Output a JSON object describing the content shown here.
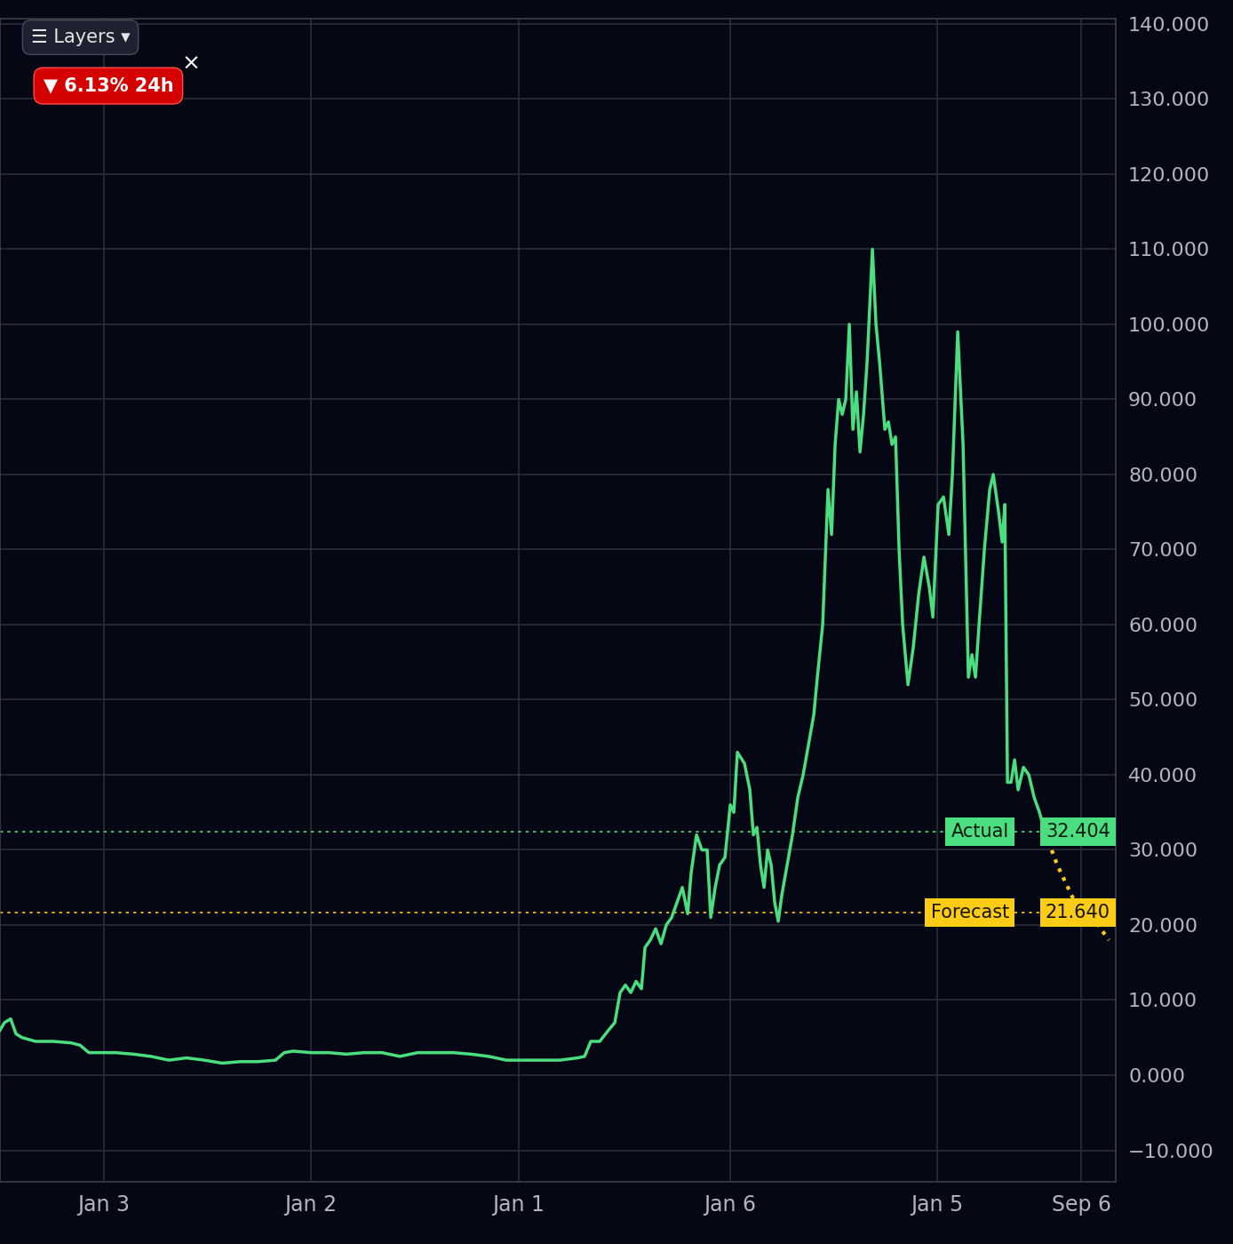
{
  "chart_data": {
    "type": "line",
    "xlim": [
      0,
      1256
    ],
    "xticks": [
      {
        "value": 117,
        "label": "Jan 3"
      },
      {
        "value": 350,
        "label": "Jan 2"
      },
      {
        "value": 584,
        "label": "Jan 1"
      },
      {
        "value": 822,
        "label": "Jan 6"
      },
      {
        "value": 1055,
        "label": "Jan 5"
      },
      {
        "value": 1217,
        "label": "Sep 6"
      }
    ],
    "ylim": [
      -14.2,
      140.7
    ],
    "yticks": [
      {
        "value": -10,
        "label": "−10.000"
      },
      {
        "value": 0,
        "label": "0.000"
      },
      {
        "value": 10,
        "label": "10.000"
      },
      {
        "value": 20,
        "label": "20.000"
      },
      {
        "value": 30,
        "label": "30.000"
      },
      {
        "value": 40,
        "label": "40.000"
      },
      {
        "value": 50,
        "label": "50.000"
      },
      {
        "value": 60,
        "label": "60.000"
      },
      {
        "value": 70,
        "label": "70.000"
      },
      {
        "value": 80,
        "label": "80.000"
      },
      {
        "value": 90,
        "label": "90.000"
      },
      {
        "value": 100,
        "label": "100.000"
      },
      {
        "value": 110,
        "label": "110.000"
      },
      {
        "value": 120,
        "label": "120.000"
      },
      {
        "value": 130,
        "label": "130.000"
      },
      {
        "value": 140,
        "label": "140.000"
      }
    ],
    "grid": true,
    "series": [
      {
        "color": "#4ade80",
        "line_style": "solid",
        "x": [
          0,
          5,
          12,
          18,
          25,
          40,
          60,
          80,
          90,
          95,
          100,
          110,
          130,
          150,
          170,
          190,
          210,
          230,
          250,
          270,
          290,
          310,
          320,
          330,
          350,
          370,
          390,
          410,
          430,
          450,
          470,
          490,
          510,
          530,
          550,
          570,
          590,
          610,
          630,
          650,
          658,
          665,
          675,
          685,
          692,
          698,
          704,
          710,
          716,
          722,
          726,
          732,
          738,
          744,
          750,
          756,
          762,
          768,
          774,
          778,
          784,
          790,
          796,
          800,
          805,
          810,
          816,
          822,
          826,
          830,
          838,
          844,
          848,
          852,
          856,
          860,
          864,
          868,
          872,
          876,
          880,
          886,
          892,
          898,
          904,
          910,
          916,
          920,
          926,
          932,
          936,
          940,
          944,
          948,
          952,
          956,
          960,
          964,
          968,
          972,
          976,
          982,
          986,
          990,
          996,
          1000,
          1004,
          1008,
          1012,
          1016,
          1022,
          1028,
          1034,
          1040,
          1046,
          1050,
          1056,
          1062,
          1068,
          1072,
          1078,
          1084,
          1090,
          1094,
          1098,
          1102,
          1108,
          1114,
          1118,
          1124,
          1128,
          1131,
          1134,
          1138,
          1142,
          1146,
          1152,
          1158,
          1164,
          1170,
          1176
        ],
        "values": [
          6,
          7,
          7.5,
          5.5,
          5,
          4.5,
          4.5,
          4.3,
          4,
          3.5,
          3,
          3,
          3,
          2.8,
          2.5,
          2,
          2.3,
          2,
          1.6,
          1.8,
          1.8,
          2,
          3,
          3.2,
          3,
          3,
          2.8,
          3,
          3,
          2.5,
          3,
          3,
          3,
          2.8,
          2.5,
          2,
          2,
          2,
          2,
          2.3,
          2.5,
          4.5,
          4.5,
          6,
          7,
          11,
          12,
          11,
          12.5,
          11.5,
          17,
          18,
          19.5,
          17.5,
          20,
          21,
          23,
          25,
          21.5,
          27,
          32,
          30,
          30,
          21,
          25,
          28,
          29,
          36,
          35,
          43,
          41.5,
          38,
          32,
          33,
          28,
          25,
          30,
          28,
          23,
          20.5,
          24,
          28,
          32,
          37,
          40,
          44,
          48,
          53,
          60,
          78,
          72,
          84,
          90,
          88,
          90,
          100,
          86,
          91,
          83,
          88,
          95,
          110,
          100,
          95,
          86,
          87,
          84,
          85,
          70,
          60,
          52,
          57,
          64,
          69,
          65,
          61,
          76,
          77,
          72,
          80,
          99,
          84,
          53,
          56,
          53,
          60,
          70,
          78,
          80,
          75,
          71,
          76,
          39,
          39,
          42,
          38,
          41,
          40,
          37,
          35,
          32.4
        ]
      },
      {
        "color": "#facc15",
        "line_style": "dotted",
        "x": [
          1176,
          1190,
          1202,
          1214,
          1236,
          1248
        ],
        "values": [
          32.4,
          28,
          25,
          22,
          20,
          18
        ]
      }
    ],
    "reference_lines": [
      {
        "name": "Actual",
        "value": 32.404,
        "color": "#4ade80"
      },
      {
        "name": "Forecast",
        "value": {
          "value": 21.64,
          "label": "21.640"
        },
        "color": "#facc15"
      }
    ],
    "annotations": [
      "☰ Layers ▾",
      "▼ 6.13% 24h",
      "×"
    ]
  }
}
